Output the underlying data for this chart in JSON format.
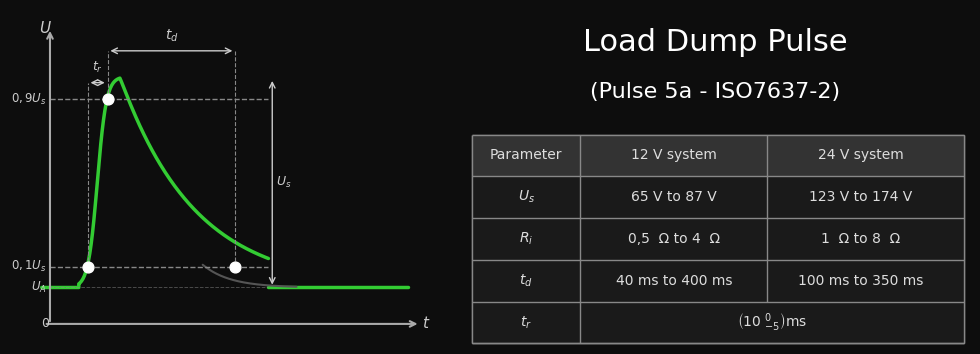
{
  "bg_color": "#0d0d0d",
  "title_line1": "Load Dump Pulse",
  "title_line2": "(Pulse 5a - ISO7637-2)",
  "title_color": "#ffffff",
  "curve_color": "#33cc33",
  "axis_color": "#aaaaaa",
  "dashed_color": "#888888",
  "annotation_color": "#cccccc",
  "dot_color": "#ffffff",
  "table_border_color": "#888888",
  "table_header_bg": "#333333",
  "table_bg": "#1a1a1a",
  "table_text_color": "#dddddd",
  "table_rows": [
    [
      "Parameter",
      "12 V system",
      "24 V system"
    ],
    [
      "$U_s$",
      "65 V to 87 V",
      "123 V to 174 V"
    ],
    [
      "$R_i$",
      "0,5  Ω to 4  Ω",
      "1  Ω to 8  Ω"
    ],
    [
      "$t_d$",
      "40 ms to 400 ms",
      "100 ms to 350 ms"
    ],
    [
      "$t_r$",
      "$(10 \\;{}^{0}_{-5})$ms",
      ""
    ]
  ]
}
